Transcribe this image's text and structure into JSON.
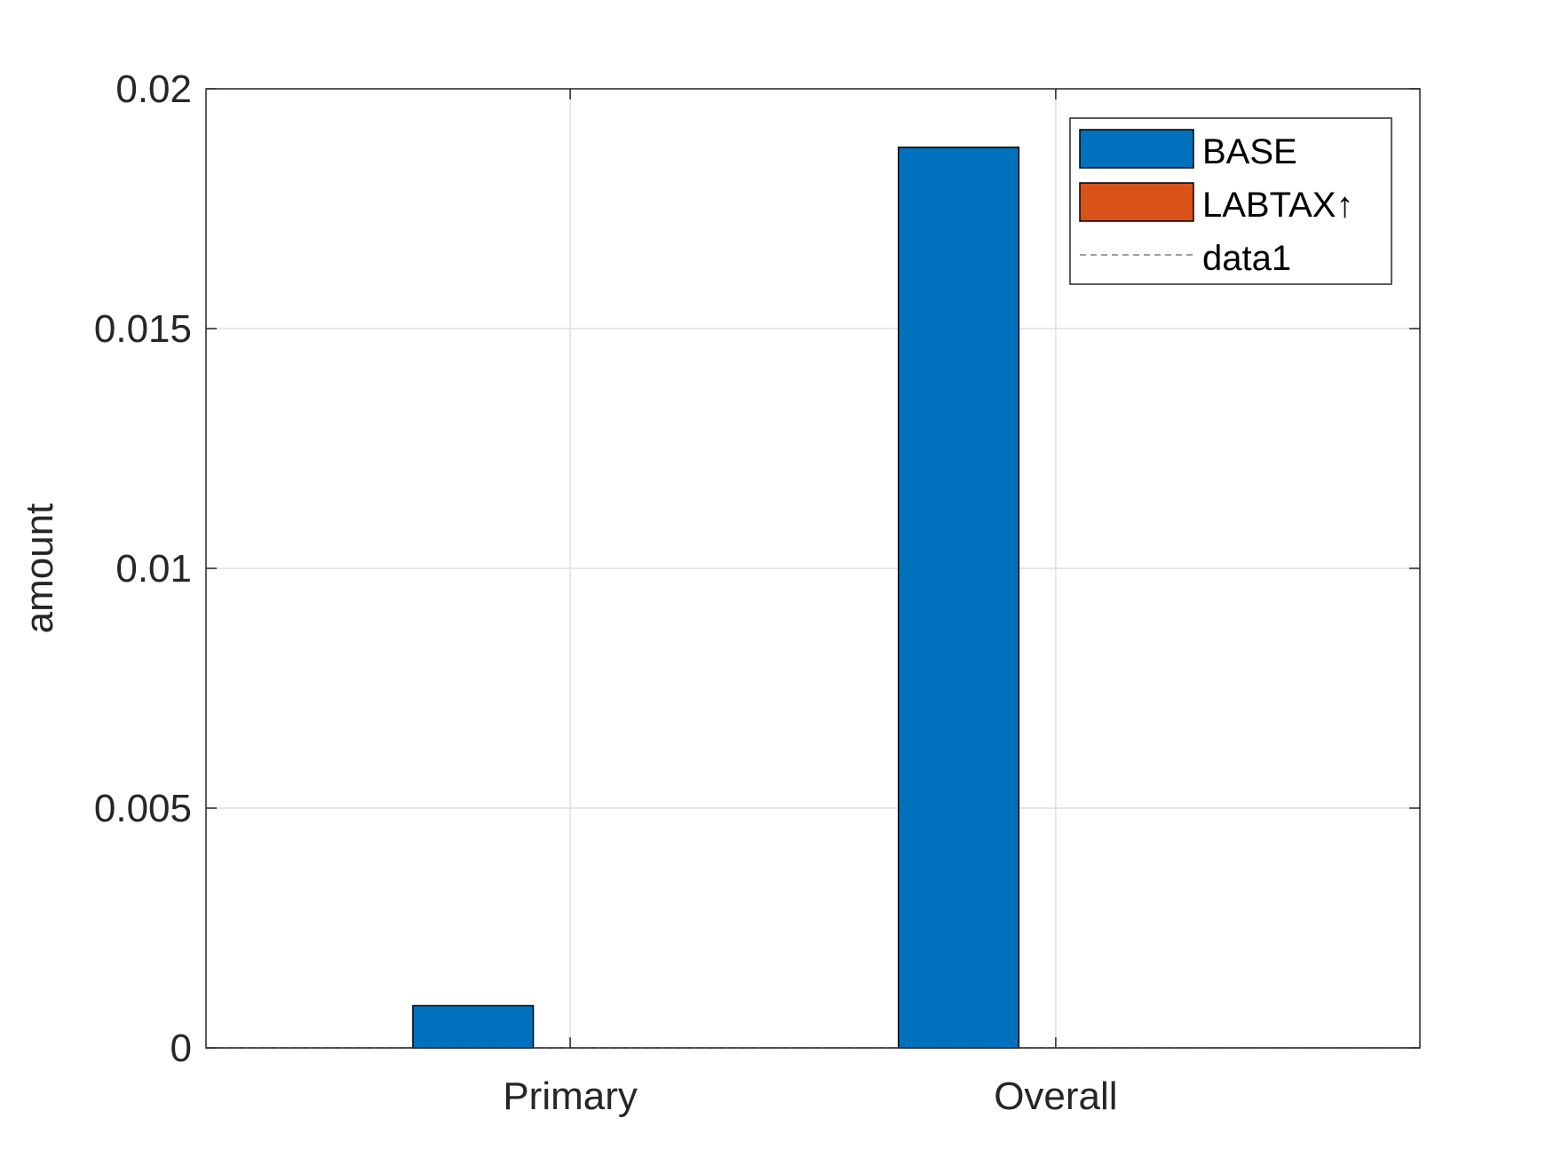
{
  "chart_data": {
    "type": "bar",
    "categories": [
      "Primary",
      "Overall"
    ],
    "series": [
      {
        "name": "BASE",
        "values": [
          0.00088,
          0.01878
        ],
        "color": "#0072BD"
      },
      {
        "name": "LABTAX↑",
        "values": [
          0,
          0
        ],
        "color": "#D95319"
      }
    ],
    "reference_line": {
      "name": "data1",
      "y": 0,
      "style": "dashed",
      "color": "#7f7f7f"
    },
    "xlabel": "",
    "ylabel": "amount",
    "ylim": [
      0,
      0.02
    ],
    "yticks": [
      0,
      0.005,
      0.01,
      0.015,
      0.02
    ],
    "ytick_labels": [
      "0",
      "0.005",
      "0.01",
      "0.015",
      "0.02"
    ],
    "grid": true,
    "legend": {
      "placement": "top-right",
      "entries": [
        "BASE",
        "LABTAX↑",
        "data1"
      ]
    }
  }
}
